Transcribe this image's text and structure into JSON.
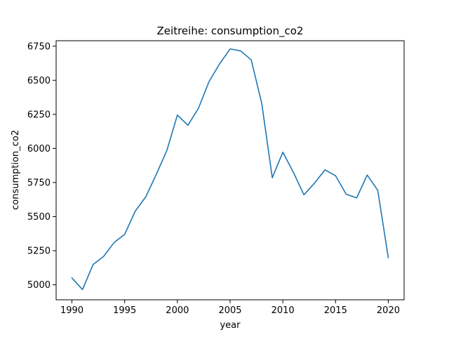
{
  "chart_data": {
    "type": "line",
    "title": "Zeitreihe: consumption_co2",
    "xlabel": "year",
    "ylabel": "consumption_co2",
    "xlim": [
      1988.5,
      2021.5
    ],
    "ylim": [
      4890,
      6790
    ],
    "xticks": [
      1990,
      1995,
      2000,
      2005,
      2010,
      2015,
      2020
    ],
    "yticks": [
      5000,
      5250,
      5500,
      5750,
      6000,
      6250,
      6500,
      6750
    ],
    "grid": false,
    "line_color": "#1f77b4",
    "series": [
      {
        "x": [
          1990,
          1991,
          1992,
          1993,
          1994,
          1995,
          1996,
          1997,
          1998,
          1999,
          2000,
          2001,
          2002,
          2003,
          2004,
          2005,
          2006,
          2007,
          2008,
          2009,
          2010,
          2011,
          2012,
          2013,
          2014,
          2015,
          2016,
          2017,
          2018,
          2019,
          2020
        ],
        "values": [
          5050,
          4965,
          5148,
          5208,
          5310,
          5370,
          5540,
          5645,
          5810,
          5985,
          6245,
          6170,
          6295,
          6490,
          6620,
          6730,
          6715,
          6650,
          6330,
          5785,
          5972,
          5825,
          5660,
          5745,
          5843,
          5800,
          5665,
          5637,
          5805,
          5693,
          5200
        ]
      }
    ]
  }
}
